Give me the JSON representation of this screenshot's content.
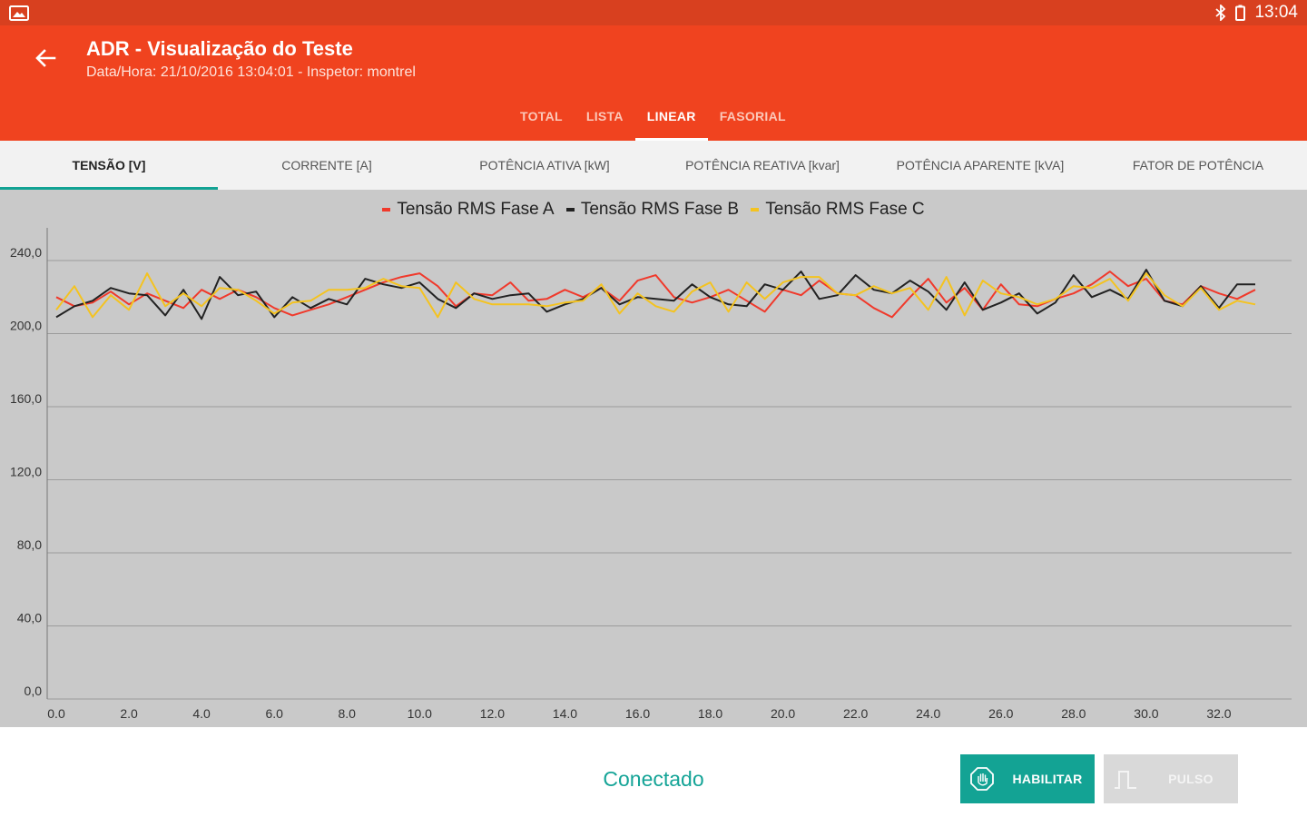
{
  "status_bar": {
    "left_icon": "gallery-icon",
    "right_icons": [
      "bluetooth-icon",
      "battery-icon"
    ],
    "time": "13:04"
  },
  "app_bar": {
    "back_icon": "arrow-back-icon",
    "title": "ADR - Visualização do Teste",
    "subtitle": "Data/Hora: 21/10/2016 13:04:01 - Inspetor: montrel",
    "tabs": [
      {
        "label": "TOTAL",
        "active": false
      },
      {
        "label": "LISTA",
        "active": false
      },
      {
        "label": "LINEAR",
        "active": true
      },
      {
        "label": "FASORIAL",
        "active": false
      }
    ]
  },
  "sub_tabs": [
    {
      "label": "TENSÃO [V]",
      "active": true
    },
    {
      "label": "CORRENTE [A]",
      "active": false
    },
    {
      "label": "POTÊNCIA ATIVA [kW]",
      "active": false
    },
    {
      "label": "POTÊNCIA REATIVA [kvar]",
      "active": false
    },
    {
      "label": "POTÊNCIA APARENTE [kVA]",
      "active": false
    },
    {
      "label": "FATOR DE POTÊNCIA",
      "active": false
    }
  ],
  "chart_data": {
    "type": "line",
    "legend_position": "top-center",
    "grid": true,
    "xlim": [
      0,
      33
    ],
    "ylim": [
      0,
      250
    ],
    "x_ticks": [
      0,
      2,
      4,
      6,
      8,
      10,
      12,
      14,
      16,
      18,
      20,
      22,
      24,
      26,
      28,
      30,
      32
    ],
    "x_tick_labels": [
      "0.0",
      "2.0",
      "4.0",
      "6.0",
      "8.0",
      "10.0",
      "12.0",
      "14.0",
      "16.0",
      "18.0",
      "20.0",
      "22.0",
      "24.0",
      "26.0",
      "28.0",
      "30.0",
      "32.0"
    ],
    "y_ticks": [
      0,
      40,
      80,
      120,
      160,
      200,
      240
    ],
    "y_tick_labels": [
      "0,0",
      "40,0",
      "80,0",
      "120,0",
      "160,0",
      "200,0",
      "240,0"
    ],
    "x": [
      0,
      0.5,
      1,
      1.5,
      2,
      2.5,
      3,
      3.5,
      4,
      4.5,
      5,
      5.5,
      6,
      6.5,
      7,
      7.5,
      8,
      8.5,
      9,
      9.5,
      10,
      10.5,
      11,
      11.5,
      12,
      12.5,
      13,
      13.5,
      14,
      14.5,
      15,
      15.5,
      16,
      16.5,
      17,
      17.5,
      18,
      18.5,
      19,
      19.5,
      20,
      20.5,
      21,
      21.5,
      22,
      22.5,
      23,
      23.5,
      24,
      24.5,
      25,
      25.5,
      26,
      26.5,
      27,
      27.5,
      28,
      28.5,
      29,
      29.5,
      30,
      30.5,
      31,
      31.5,
      32,
      32.5,
      33
    ],
    "series": [
      {
        "name": "Tensão RMS Fase A",
        "color": "#f0392b",
        "values": [
          220,
          215,
          217,
          223,
          216,
          222,
          218,
          214,
          224,
          219,
          224,
          220,
          214,
          210,
          213,
          216,
          220,
          224,
          228,
          231,
          233,
          226,
          215,
          222,
          221,
          228,
          218,
          219,
          224,
          220,
          225,
          218,
          229,
          232,
          220,
          217,
          220,
          224,
          218,
          212,
          224,
          221,
          229,
          222,
          221,
          214,
          209,
          220,
          230,
          217,
          225,
          213,
          227,
          216,
          215,
          219,
          222,
          227,
          234,
          226,
          230,
          218,
          216,
          226,
          222,
          219,
          224
        ]
      },
      {
        "name": "Tensão RMS Fase B",
        "color": "#222222",
        "values": [
          209,
          215,
          218,
          225,
          222,
          221,
          210,
          224,
          208,
          231,
          221,
          223,
          209,
          220,
          214,
          219,
          216,
          230,
          227,
          225,
          228,
          219,
          214,
          222,
          219,
          221,
          222,
          212,
          216,
          219,
          225,
          216,
          220,
          219,
          218,
          227,
          220,
          216,
          215,
          227,
          224,
          234,
          219,
          221,
          232,
          224,
          222,
          229,
          223,
          213,
          228,
          213,
          217,
          222,
          211,
          217,
          232,
          220,
          224,
          219,
          235,
          218,
          215,
          226,
          214,
          227,
          227
        ]
      },
      {
        "name": "Tensão RMS Fase C",
        "color": "#f4c320",
        "values": [
          213,
          226,
          209,
          221,
          213,
          233,
          215,
          222,
          215,
          225,
          224,
          218,
          211,
          217,
          218,
          224,
          224,
          225,
          230,
          226,
          225,
          209,
          228,
          219,
          216,
          216,
          216,
          215,
          217,
          218,
          227,
          211,
          222,
          215,
          212,
          223,
          228,
          212,
          228,
          219,
          228,
          231,
          231,
          222,
          221,
          226,
          222,
          225,
          213,
          231,
          210,
          229,
          222,
          220,
          216,
          219,
          226,
          225,
          230,
          218,
          233,
          221,
          215,
          225,
          213,
          218,
          216
        ]
      }
    ]
  },
  "bottom_bar": {
    "status": "Conectado",
    "habilitar": {
      "label": "HABILITAR",
      "icon": "stop-hand-icon",
      "color": "#13a394"
    },
    "pulso": {
      "label": "PULSO",
      "icon": "pulse-icon",
      "disabled": true
    }
  }
}
